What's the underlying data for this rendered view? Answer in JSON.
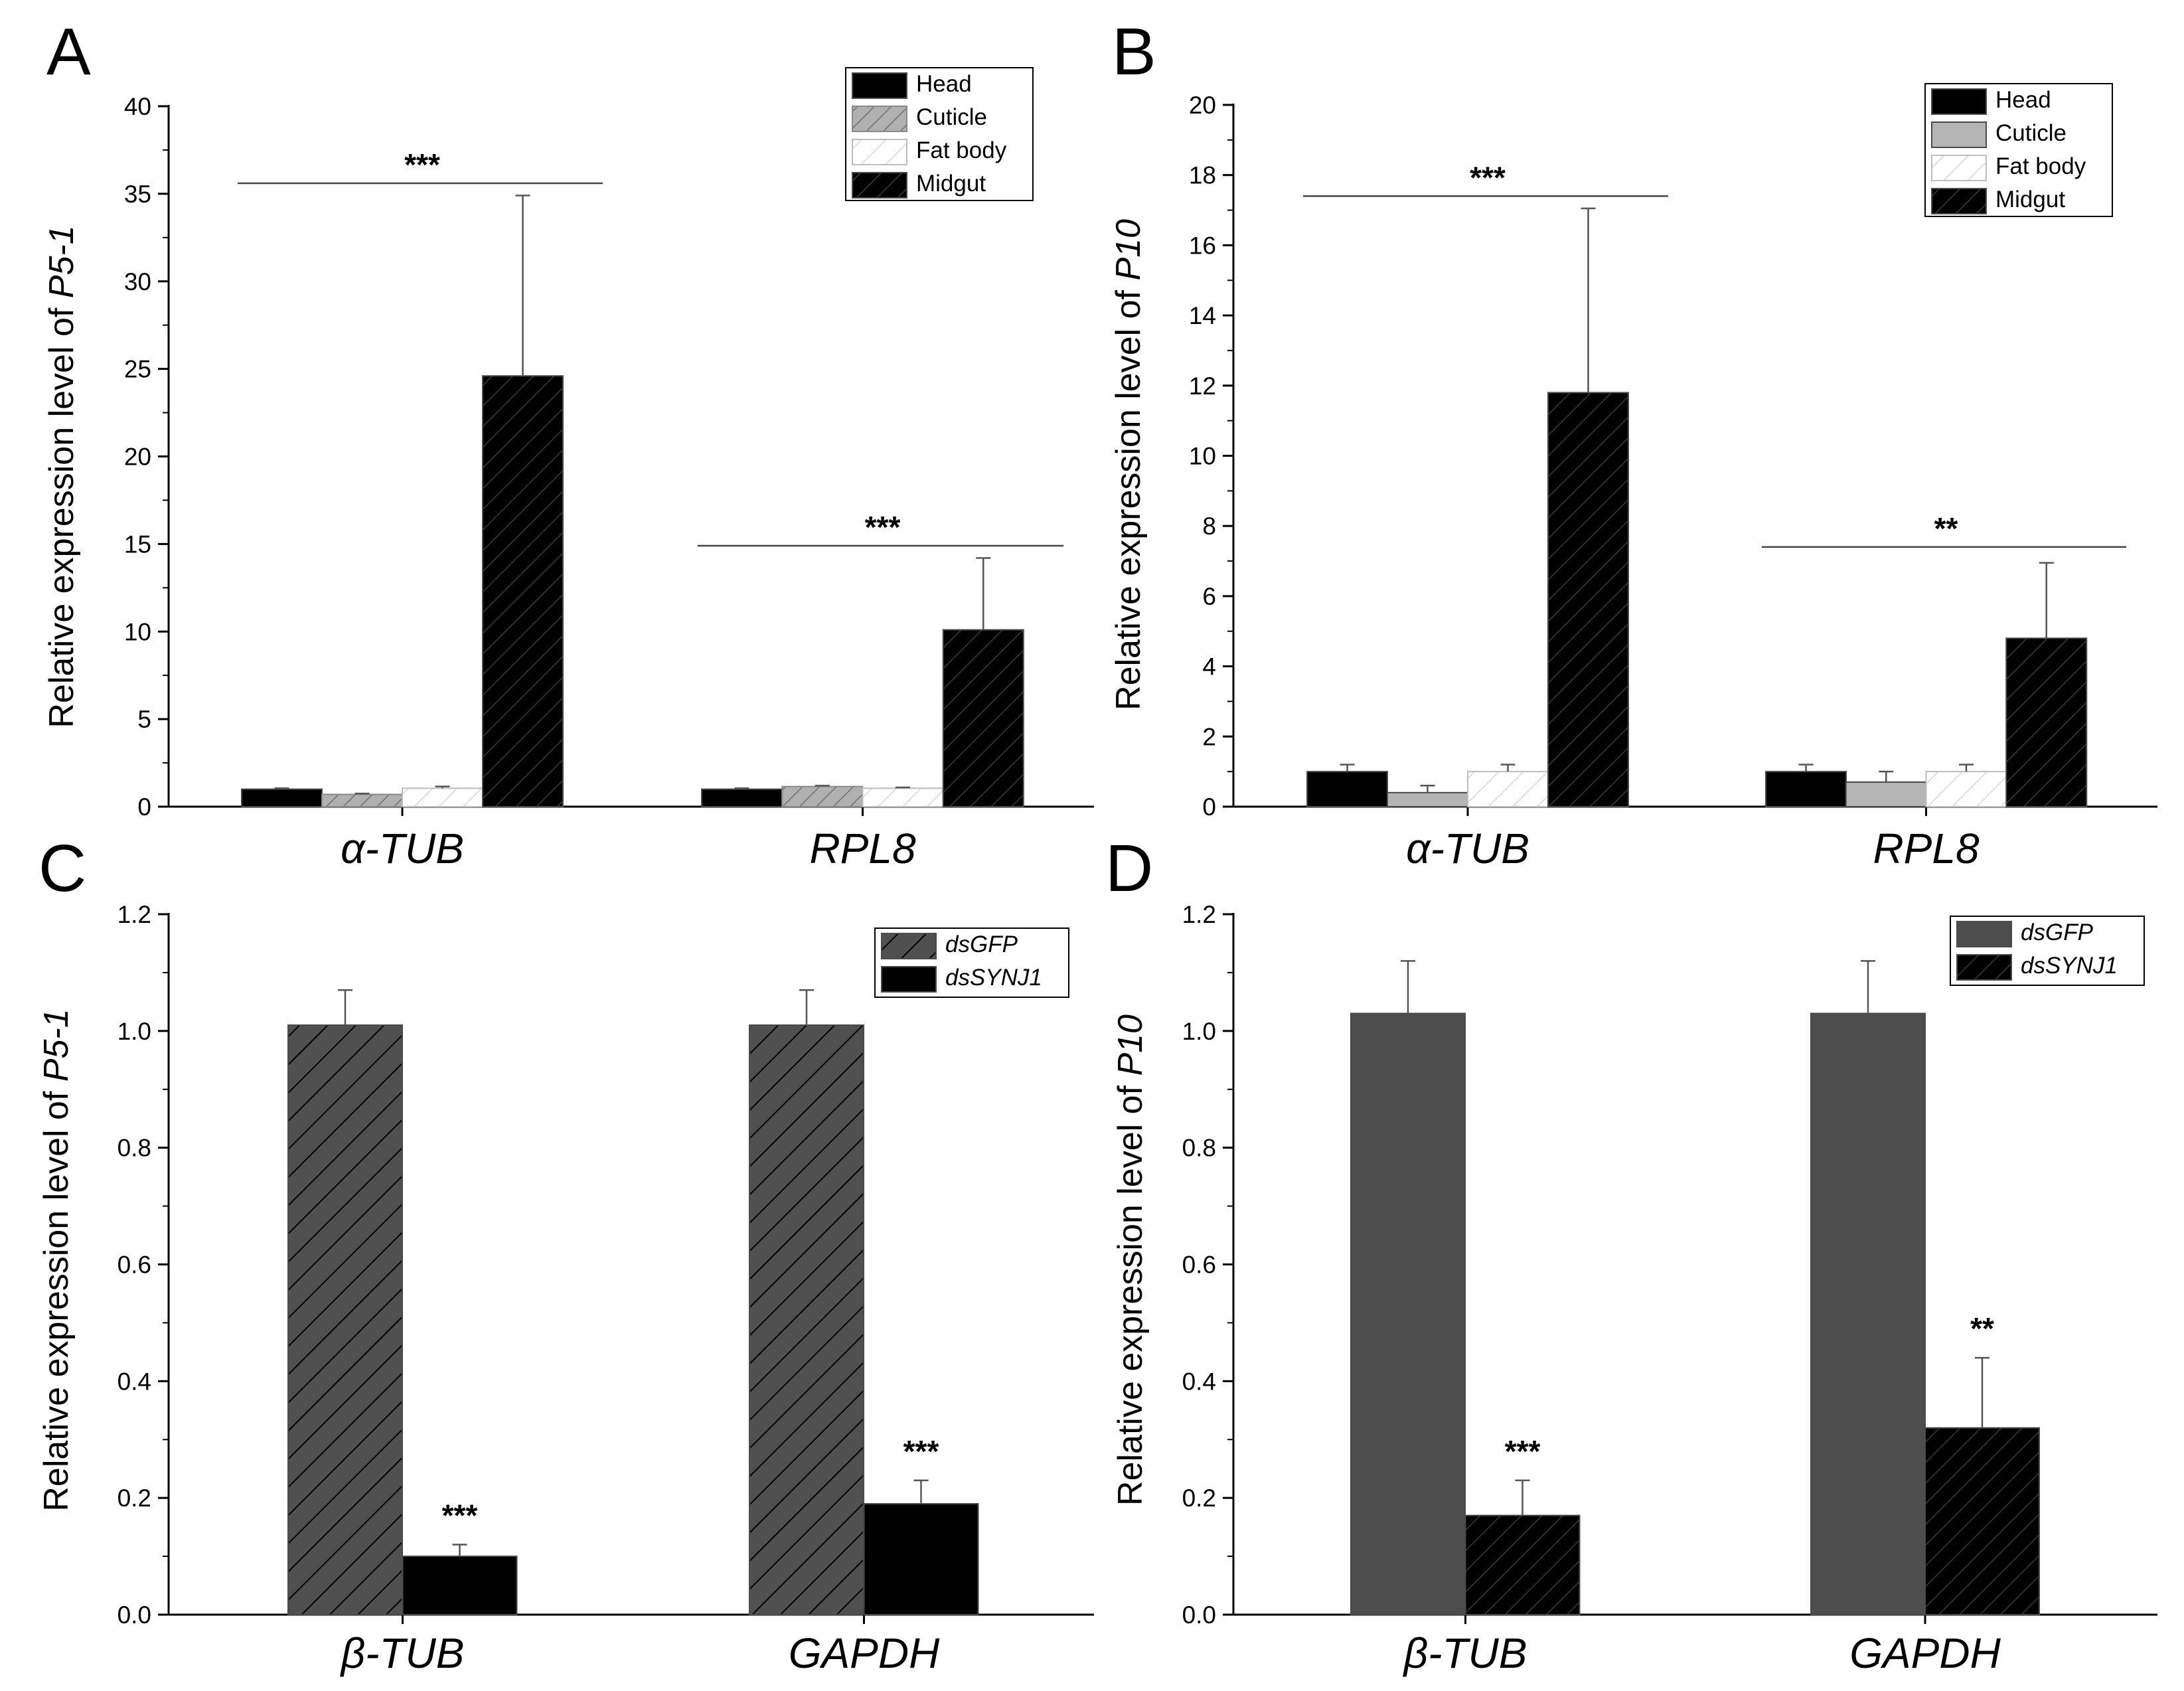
{
  "panels": {
    "A": {
      "letter": "A",
      "ylabel_prefix": "Relative expression level of ",
      "ylabel_gene": "P5-1"
    },
    "B": {
      "letter": "B",
      "ylabel_prefix": "Relative expression level of ",
      "ylabel_gene": "P10"
    },
    "C": {
      "letter": "C",
      "ylabel_prefix": "Relative expression level of ",
      "ylabel_gene": "P5-1"
    },
    "D": {
      "letter": "D",
      "ylabel_prefix": "Relative expression level of ",
      "ylabel_gene": "P10"
    }
  },
  "chart_data": [
    {
      "panel": "A",
      "type": "bar",
      "title": "",
      "xlabel": "",
      "ylabel": "Relative expression level of P5-1",
      "ylim": [
        0,
        40
      ],
      "yticks": [
        0,
        5,
        10,
        15,
        20,
        25,
        30,
        35,
        40
      ],
      "categories": [
        "α-TUB",
        "RPL8"
      ],
      "series": [
        {
          "name": "Head",
          "values": [
            1.0,
            1.0
          ],
          "errors": [
            0.05,
            0.05
          ],
          "color": "#000000",
          "pattern": "solid"
        },
        {
          "name": "Cuticle",
          "values": [
            0.7,
            1.15
          ],
          "errors": [
            0.05,
            0.05
          ],
          "color": "#a8a8a8",
          "pattern": "hatch-gray"
        },
        {
          "name": "Fat body",
          "values": [
            1.05,
            1.05
          ],
          "errors": [
            0.1,
            0.05
          ],
          "color": "#ffffff",
          "pattern": "hatch-white"
        },
        {
          "name": "Midgut",
          "values": [
            24.6,
            10.1
          ],
          "errors": [
            10.3,
            4.1
          ],
          "color": "#000000",
          "pattern": "hatch-black"
        }
      ],
      "significance": [
        {
          "category": "α-TUB",
          "label": "***",
          "y": 35.6
        },
        {
          "category": "RPL8",
          "label": "***",
          "y": 14.9
        }
      ],
      "legend": "top-right"
    },
    {
      "panel": "B",
      "type": "bar",
      "title": "",
      "xlabel": "",
      "ylabel": "Relative expression level of P10",
      "ylim": [
        0,
        20
      ],
      "yticks": [
        0,
        2,
        4,
        6,
        8,
        10,
        12,
        14,
        16,
        18,
        20
      ],
      "categories": [
        "α-TUB",
        "RPL8"
      ],
      "series": [
        {
          "name": "Head",
          "values": [
            1.0,
            1.0
          ],
          "errors": [
            0.2,
            0.2
          ],
          "color": "#000000",
          "pattern": "solid"
        },
        {
          "name": "Cuticle",
          "values": [
            0.4,
            0.7
          ],
          "errors": [
            0.2,
            0.3
          ],
          "color": "#b4b4b4",
          "pattern": "solid"
        },
        {
          "name": "Fat body",
          "values": [
            1.0,
            1.0
          ],
          "errors": [
            0.2,
            0.2
          ],
          "color": "#ffffff",
          "pattern": "hatch-white"
        },
        {
          "name": "Midgut",
          "values": [
            11.8,
            4.8
          ],
          "errors": [
            5.25,
            2.15
          ],
          "color": "#000000",
          "pattern": "hatch-black"
        }
      ],
      "significance": [
        {
          "category": "α-TUB",
          "label": "***",
          "y": 17.4
        },
        {
          "category": "RPL8",
          "label": "**",
          "y": 7.4
        }
      ],
      "legend": "top-right"
    },
    {
      "panel": "C",
      "type": "bar",
      "title": "",
      "xlabel": "",
      "ylabel": "Relative expression level of P5-1",
      "ylim": [
        0,
        1.2
      ],
      "yticks": [
        0.0,
        0.2,
        0.4,
        0.6,
        0.8,
        1.0,
        1.2
      ],
      "categories": [
        "β-TUB",
        "GAPDH"
      ],
      "series": [
        {
          "name": "dsGFP",
          "values": [
            1.01,
            1.01
          ],
          "errors": [
            0.06,
            0.06
          ],
          "color": "#505050",
          "pattern": "hatch-dark"
        },
        {
          "name": "dsSYNJ1",
          "values": [
            0.1,
            0.19
          ],
          "errors": [
            0.02,
            0.04
          ],
          "color": "#000000",
          "pattern": "solid"
        }
      ],
      "significance": [
        {
          "category": "β-TUB",
          "series": "dsSYNJ1",
          "label": "***"
        },
        {
          "category": "GAPDH",
          "series": "dsSYNJ1",
          "label": "***"
        }
      ],
      "legend": "top-right"
    },
    {
      "panel": "D",
      "type": "bar",
      "title": "",
      "xlabel": "",
      "ylabel": "Relative expression level of P10",
      "ylim": [
        0,
        1.2
      ],
      "yticks": [
        0.0,
        0.2,
        0.4,
        0.6,
        0.8,
        1.0,
        1.2
      ],
      "categories": [
        "β-TUB",
        "GAPDH"
      ],
      "series": [
        {
          "name": "dsGFP",
          "values": [
            1.03,
            1.03
          ],
          "errors": [
            0.09,
            0.09
          ],
          "color": "#4d4d4d",
          "pattern": "solid"
        },
        {
          "name": "dsSYNJ1",
          "values": [
            0.17,
            0.32
          ],
          "errors": [
            0.06,
            0.12
          ],
          "color": "#000000",
          "pattern": "hatch-black"
        }
      ],
      "significance": [
        {
          "category": "β-TUB",
          "series": "dsSYNJ1",
          "label": "***"
        },
        {
          "category": "GAPDH",
          "series": "dsSYNJ1",
          "label": "**"
        }
      ],
      "legend": "top-right"
    }
  ]
}
